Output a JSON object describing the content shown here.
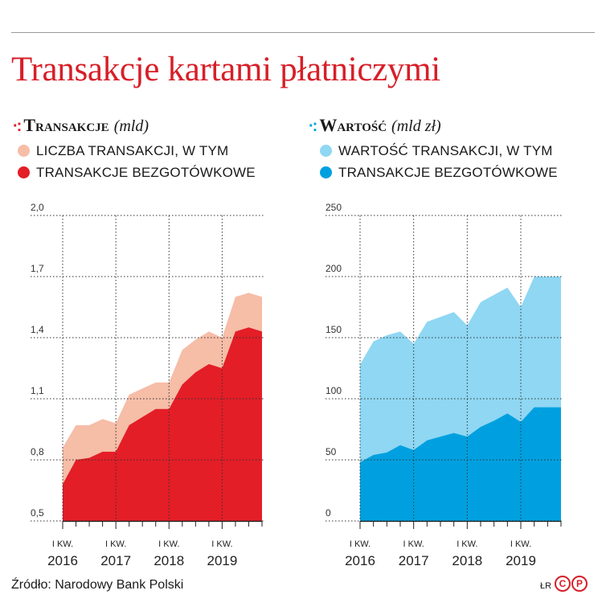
{
  "title": "Transakcje kartami płatniczymi",
  "source": "Źródło: Narodowy Bank Polski",
  "author_initials": "ŁR",
  "logo_letters": [
    "C",
    "P"
  ],
  "colors": {
    "title_red": "#d71f28",
    "left_total": "#f6bda7",
    "left_cashless": "#e31e27",
    "right_total": "#8fd7f3",
    "right_cashless": "#00a0e0"
  },
  "chart_data": [
    {
      "type": "area",
      "title": "Transakcje",
      "unit": "(mld)",
      "ylim": [
        0.5,
        2.0
      ],
      "y_ticks": [
        "2,0",
        "1,7",
        "1,4",
        "1,1",
        "0,8",
        "0,5"
      ],
      "x_tick_labels": [
        "I KW.",
        "I KW.",
        "I KW.",
        "I KW."
      ],
      "x_year_labels": [
        "2016",
        "2017",
        "2018",
        "2019"
      ],
      "quarters": [
        "I 2016",
        "II 2016",
        "III 2016",
        "IV 2016",
        "I 2017",
        "II 2017",
        "III 2017",
        "IV 2017",
        "I 2018",
        "II 2018",
        "III 2018",
        "IV 2018",
        "I 2019",
        "II 2019",
        "III 2019",
        "IV 2019"
      ],
      "grid": true,
      "legend_position": "top-left",
      "series": [
        {
          "name": "LICZBA TRANSAKCJI, W TYM",
          "values": [
            0.86,
            0.97,
            0.97,
            1.0,
            0.98,
            1.12,
            1.15,
            1.18,
            1.18,
            1.34,
            1.39,
            1.43,
            1.4,
            1.6,
            1.62,
            1.6
          ]
        },
        {
          "name": "TRANSAKCJE BEZGOTÓWKOWE",
          "values": [
            0.68,
            0.8,
            0.81,
            0.84,
            0.84,
            0.97,
            1.01,
            1.05,
            1.05,
            1.17,
            1.23,
            1.27,
            1.25,
            1.43,
            1.45,
            1.43
          ]
        }
      ]
    },
    {
      "type": "area",
      "title": "Wartość",
      "unit": "(mld zł)",
      "ylim": [
        0,
        250
      ],
      "y_ticks": [
        "250",
        "200",
        "150",
        "100",
        "50",
        "0"
      ],
      "x_tick_labels": [
        "I KW.",
        "I KW.",
        "I KW.",
        "I KW."
      ],
      "x_year_labels": [
        "2016",
        "2017",
        "2018",
        "2019"
      ],
      "quarters": [
        "I 2016",
        "II 2016",
        "III 2016",
        "IV 2016",
        "I 2017",
        "II 2017",
        "III 2017",
        "IV 2017",
        "I 2018",
        "II 2018",
        "III 2018",
        "IV 2018",
        "I 2019",
        "II 2019",
        "III 2019",
        "IV 2019"
      ],
      "grid": true,
      "legend_position": "top-left",
      "series": [
        {
          "name": "WARTOŚĆ TRANSAKCJI, W TYM",
          "values": [
            128,
            147,
            152,
            155,
            145,
            163,
            167,
            171,
            160,
            179,
            185,
            191,
            175,
            200,
            200,
            200
          ]
        },
        {
          "name": "TRANSAKCJE BEZGOTÓWKOWE",
          "values": [
            48,
            54,
            56,
            62,
            58,
            66,
            69,
            72,
            69,
            77,
            82,
            88,
            81,
            93,
            93,
            93
          ]
        }
      ]
    }
  ]
}
